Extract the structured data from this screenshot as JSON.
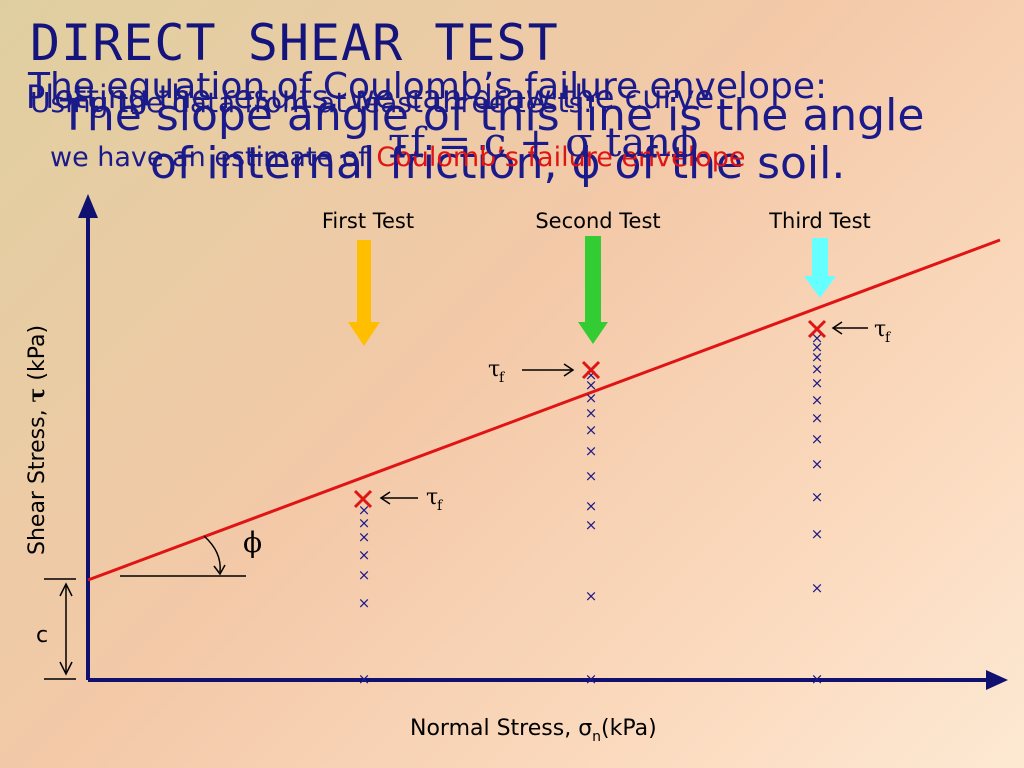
{
  "title": "DIRECT SHEAR TEST",
  "overlapping_text": [
    "The equation of Coulomb’s failure envelope:",
    "Plotting the results, we can draw the curve",
    "Using the data from at least three tests:",
    "The slope angle of this line is the angle",
    "of internal friction, ϕ of the soil."
  ],
  "line2": {
    "prefix": "we have an estimate of ",
    "highlight": "Coulomb’s failure envelope"
  },
  "equation": "τf = c + σ tanϕ",
  "tests": [
    {
      "label": "First Test",
      "arrow_color": "#ffbf00"
    },
    {
      "label": "Second Test",
      "arrow_color": "#33cc33"
    },
    {
      "label": "Third Test",
      "arrow_color": "#66ffff"
    }
  ],
  "axes": {
    "x_label": "Normal Stress, σ",
    "x_sub": "n",
    "x_unit": "(kPa)",
    "y_label_prefix": "Shear Stress, ",
    "y_symbol": "τ",
    "y_unit": " (kPa)"
  },
  "symbols": {
    "tau": "τ",
    "f": "f",
    "phi": "ϕ",
    "cohesion": "c",
    "cross": "×"
  },
  "colors": {
    "axis": "#101070",
    "envelope": "#e01414",
    "failure_mark": "#e01414",
    "markers": "#1a1a8a",
    "text": "#1a1a8a"
  }
}
